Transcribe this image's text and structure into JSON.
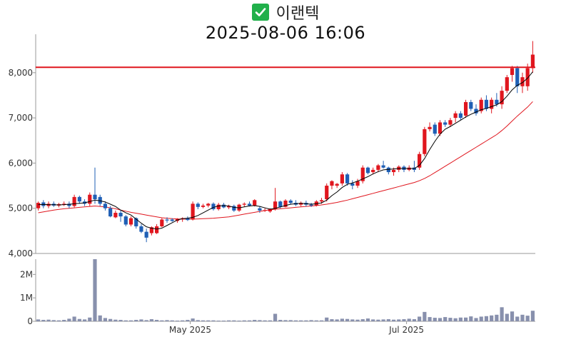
{
  "header": {
    "stock_name": "이랜텍",
    "timestamp": "2025-08-06 16:06",
    "check_icon": "check-box-icon"
  },
  "colors": {
    "up": "#e0161e",
    "down": "#1f5fb5",
    "reference_line": "#e0161e",
    "ma_short": "#000000",
    "ma_long": "#e0161e",
    "volume": "#8890ad"
  },
  "chart_data": [
    {
      "type": "candlestick",
      "title": "",
      "y_ticks": [
        "4,000",
        "5,000",
        "6,000",
        "7,000",
        "8,000"
      ],
      "ylim": [
        4000,
        8850
      ],
      "reference_line": 8120,
      "grid": false,
      "ohlc": [
        [
          5000,
          5150,
          4950,
          5120
        ],
        [
          5130,
          5180,
          5000,
          5050
        ],
        [
          5050,
          5150,
          5000,
          5100
        ],
        [
          5100,
          5150,
          5030,
          5060
        ],
        [
          5060,
          5120,
          5020,
          5090
        ],
        [
          5090,
          5150,
          5050,
          5100
        ],
        [
          5100,
          5150,
          5000,
          5050
        ],
        [
          5050,
          5300,
          5020,
          5250
        ],
        [
          5250,
          5280,
          5100,
          5150
        ],
        [
          5150,
          5200,
          5050,
          5100
        ],
        [
          5100,
          5350,
          5050,
          5300
        ],
        [
          5300,
          5900,
          5100,
          5200
        ],
        [
          5250,
          5300,
          5050,
          5100
        ],
        [
          5100,
          5150,
          4950,
          5000
        ],
        [
          5000,
          5050,
          4800,
          4820
        ],
        [
          4800,
          4950,
          4780,
          4900
        ],
        [
          4900,
          4950,
          4700,
          4820
        ],
        [
          4820,
          4850,
          4600,
          4640
        ],
        [
          4640,
          4820,
          4600,
          4780
        ],
        [
          4780,
          4800,
          4550,
          4600
        ],
        [
          4600,
          4650,
          4450,
          4480
        ],
        [
          4480,
          4550,
          4250,
          4350
        ],
        [
          4450,
          4600,
          4400,
          4580
        ],
        [
          4450,
          4650,
          4430,
          4600
        ],
        [
          4600,
          4780,
          4580,
          4750
        ],
        [
          4750,
          4800,
          4680,
          4730
        ],
        [
          4750,
          4780,
          4700,
          4720
        ],
        [
          4720,
          4780,
          4680,
          4760
        ],
        [
          4760,
          4800,
          4700,
          4780
        ],
        [
          4780,
          4820,
          4720,
          4740
        ],
        [
          4750,
          5150,
          4730,
          5100
        ],
        [
          5100,
          5130,
          4980,
          5030
        ],
        [
          5030,
          5100,
          5000,
          5060
        ],
        [
          5060,
          5120,
          5020,
          5100
        ],
        [
          5100,
          5130,
          4950,
          4980
        ],
        [
          4980,
          5120,
          4950,
          5080
        ],
        [
          5080,
          5120,
          5000,
          5020
        ],
        [
          5020,
          5080,
          4980,
          5050
        ],
        [
          5050,
          5080,
          4920,
          4950
        ],
        [
          4950,
          5100,
          4920,
          5080
        ],
        [
          5080,
          5130,
          5030,
          5100
        ],
        [
          5100,
          5150,
          5040,
          5060
        ],
        [
          5060,
          5200,
          5040,
          5180
        ],
        [
          5000,
          5050,
          4900,
          4950
        ],
        [
          4950,
          5000,
          4920,
          4960
        ],
        [
          4930,
          5000,
          4900,
          4980
        ],
        [
          4980,
          5450,
          4950,
          5150
        ],
        [
          5150,
          5170,
          5000,
          5030
        ],
        [
          5030,
          5200,
          5020,
          5170
        ],
        [
          5170,
          5200,
          5080,
          5120
        ],
        [
          5120,
          5180,
          5050,
          5080
        ],
        [
          5080,
          5150,
          5040,
          5120
        ],
        [
          5120,
          5170,
          5040,
          5080
        ],
        [
          5080,
          5120,
          5030,
          5060
        ],
        [
          5060,
          5180,
          5040,
          5150
        ],
        [
          5150,
          5230,
          5100,
          5180
        ],
        [
          5200,
          5550,
          5150,
          5500
        ],
        [
          5500,
          5620,
          5420,
          5600
        ],
        [
          5500,
          5560,
          5450,
          5540
        ],
        [
          5550,
          5800,
          5500,
          5750
        ],
        [
          5750,
          5780,
          5500,
          5550
        ],
        [
          5550,
          5620,
          5420,
          5500
        ],
        [
          5500,
          5650,
          5450,
          5600
        ],
        [
          5600,
          5950,
          5550,
          5900
        ],
        [
          5900,
          5920,
          5750,
          5780
        ],
        [
          5800,
          5900,
          5750,
          5850
        ],
        [
          5850,
          5980,
          5800,
          5950
        ],
        [
          5950,
          6050,
          5880,
          5900
        ],
        [
          5900,
          5920,
          5750,
          5800
        ],
        [
          5800,
          5900,
          5720,
          5850
        ],
        [
          5850,
          5950,
          5800,
          5920
        ],
        [
          5920,
          5950,
          5800,
          5850
        ],
        [
          5850,
          5950,
          5820,
          5900
        ],
        [
          5900,
          6050,
          5800,
          5850
        ],
        [
          5900,
          6250,
          5850,
          6200
        ],
        [
          6200,
          6800,
          6150,
          6750
        ],
        [
          6750,
          6900,
          6700,
          6800
        ],
        [
          6850,
          6900,
          6600,
          6650
        ],
        [
          6650,
          6950,
          6600,
          6900
        ],
        [
          6900,
          6950,
          6800,
          6850
        ],
        [
          6850,
          7000,
          6800,
          6950
        ],
        [
          7000,
          7150,
          6900,
          7100
        ],
        [
          7100,
          7150,
          6950,
          7000
        ],
        [
          7050,
          7400,
          7000,
          7350
        ],
        [
          7350,
          7400,
          7150,
          7200
        ],
        [
          7200,
          7300,
          7050,
          7100
        ],
        [
          7150,
          7450,
          7100,
          7400
        ],
        [
          7400,
          7500,
          7150,
          7200
        ],
        [
          7200,
          7450,
          7100,
          7400
        ],
        [
          7400,
          7550,
          7250,
          7300
        ],
        [
          7300,
          7700,
          7200,
          7600
        ],
        [
          7600,
          7950,
          7550,
          7900
        ],
        [
          7950,
          8150,
          7800,
          8100
        ],
        [
          8100,
          8150,
          7550,
          7700
        ],
        [
          7700,
          8000,
          7550,
          7900
        ],
        [
          7700,
          8200,
          7600,
          8100
        ],
        [
          8100,
          8700,
          8000,
          8400
        ]
      ],
      "ma_short": [
        5080,
        5085,
        5080,
        5078,
        5075,
        5080,
        5088,
        5100,
        5110,
        5120,
        5150,
        5180,
        5165,
        5140,
        5090,
        5040,
        4960,
        4900,
        4850,
        4760,
        4670,
        4590,
        4560,
        4540,
        4560,
        4620,
        4680,
        4740,
        4770,
        4780,
        4800,
        4840,
        4900,
        4960,
        5020,
        5050,
        5060,
        5050,
        5020,
        5010,
        5030,
        5050,
        5060,
        5040,
        5010,
        4980,
        5000,
        5030,
        5060,
        5090,
        5100,
        5110,
        5100,
        5090,
        5100,
        5120,
        5180,
        5280,
        5360,
        5460,
        5530,
        5560,
        5600,
        5650,
        5700,
        5760,
        5810,
        5850,
        5860,
        5870,
        5880,
        5880,
        5880,
        5880,
        5950,
        6100,
        6300,
        6480,
        6640,
        6750,
        6810,
        6880,
        6950,
        7020,
        7080,
        7130,
        7180,
        7210,
        7250,
        7290,
        7360,
        7480,
        7620,
        7720,
        7780,
        7880,
        8020
      ],
      "ma_long": [
        4900,
        4920,
        4940,
        4960,
        4975,
        4990,
        5000,
        5010,
        5020,
        5030,
        5040,
        5050,
        5040,
        5030,
        5010,
        4990,
        4960,
        4935,
        4910,
        4890,
        4870,
        4850,
        4830,
        4810,
        4790,
        4780,
        4770,
        4765,
        4760,
        4760,
        4760,
        4765,
        4770,
        4775,
        4780,
        4790,
        4800,
        4810,
        4830,
        4850,
        4870,
        4890,
        4910,
        4930,
        4950,
        4965,
        4980,
        4990,
        5000,
        5010,
        5020,
        5030,
        5040,
        5050,
        5060,
        5075,
        5090,
        5110,
        5130,
        5155,
        5180,
        5210,
        5240,
        5270,
        5300,
        5330,
        5360,
        5390,
        5420,
        5450,
        5480,
        5510,
        5540,
        5570,
        5610,
        5660,
        5720,
        5790,
        5860,
        5930,
        6000,
        6070,
        6140,
        6210,
        6280,
        6350,
        6420,
        6490,
        6560,
        6630,
        6720,
        6820,
        6930,
        7040,
        7140,
        7240,
        7360
      ]
    },
    {
      "type": "bar",
      "title": "",
      "y_ticks": [
        "0",
        "1M",
        "2M"
      ],
      "ylim": [
        0,
        2650000
      ],
      "x_ticks": [
        "May 2025",
        "Jul 2025"
      ],
      "values": [
        80000,
        60000,
        70000,
        50000,
        40000,
        60000,
        110000,
        200000,
        100000,
        80000,
        160000,
        2650000,
        250000,
        140000,
        100000,
        70000,
        60000,
        40000,
        40000,
        60000,
        80000,
        50000,
        90000,
        60000,
        40000,
        50000,
        40000,
        30000,
        40000,
        60000,
        120000,
        50000,
        40000,
        40000,
        40000,
        30000,
        30000,
        40000,
        40000,
        30000,
        40000,
        40000,
        60000,
        50000,
        40000,
        40000,
        320000,
        60000,
        50000,
        50000,
        40000,
        40000,
        40000,
        50000,
        40000,
        40000,
        160000,
        90000,
        80000,
        110000,
        100000,
        80000,
        70000,
        90000,
        120000,
        80000,
        70000,
        80000,
        90000,
        70000,
        80000,
        90000,
        110000,
        90000,
        200000,
        400000,
        180000,
        150000,
        140000,
        180000,
        150000,
        130000,
        160000,
        160000,
        210000,
        140000,
        200000,
        220000,
        250000,
        280000,
        600000,
        320000,
        420000,
        200000,
        280000,
        240000,
        450000
      ]
    }
  ]
}
